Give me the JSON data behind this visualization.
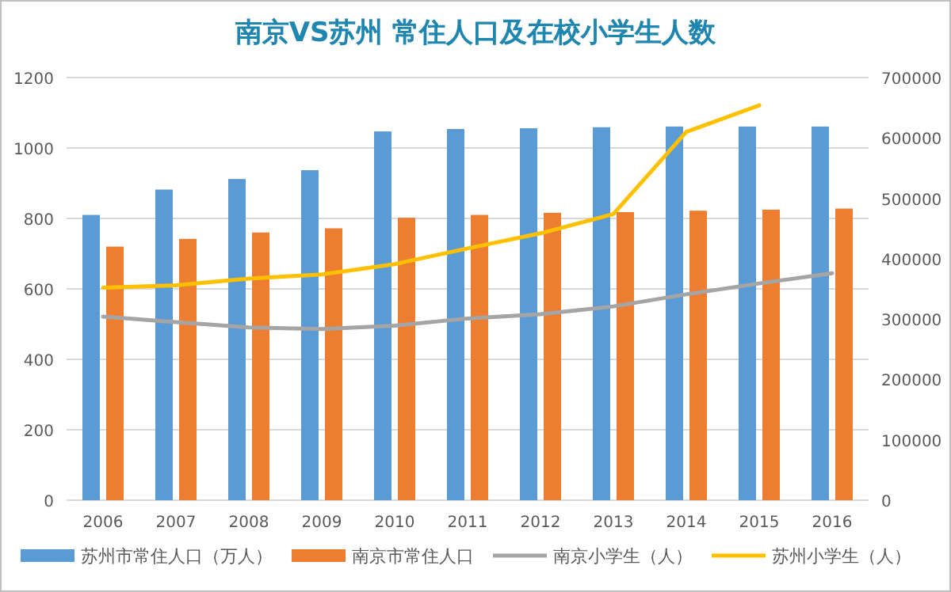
{
  "chart_data": {
    "type": "bar",
    "title": "南京VS苏州 常住人口及在校小学生人数",
    "categories": [
      "2006",
      "2007",
      "2008",
      "2009",
      "2010",
      "2011",
      "2012",
      "2013",
      "2014",
      "2015",
      "2016"
    ],
    "series": [
      {
        "name": "苏州市常住人口（万人）",
        "color": "#5b9bd5",
        "values": [
          810,
          882,
          912,
          937,
          1047,
          1054,
          1056,
          1059,
          1061,
          1061,
          1061
        ]
      },
      {
        "name": "南京市常住人口",
        "color": "#ed7d31",
        "values": [
          720,
          742,
          760,
          772,
          802,
          810,
          816,
          818,
          822,
          825,
          828
        ]
      },
      {
        "name": "南京小学生（人）",
        "type": "line",
        "axis": "y2",
        "color": "#a5a5a5",
        "values": [
          304000,
          295000,
          286000,
          283500,
          289000,
          301000,
          308000,
          321000,
          341000,
          359000,
          376000
        ]
      },
      {
        "name": "苏州小学生（人）",
        "type": "line",
        "axis": "y2",
        "color": "#ffc000",
        "values": [
          352000,
          356000,
          367000,
          374000,
          391000,
          417000,
          442000,
          474000,
          610000,
          654000,
          null
        ]
      }
    ],
    "ylim": [
      0,
      1200
    ],
    "yticks": [
      0,
      200,
      400,
      600,
      800,
      1000,
      1200
    ],
    "y2lim": [
      0,
      700000
    ],
    "y2ticks": [
      0,
      100000,
      200000,
      300000,
      400000,
      500000,
      600000,
      700000
    ],
    "grid": "y",
    "legend": "bottom",
    "marker": "none",
    "line_style": "solid"
  }
}
